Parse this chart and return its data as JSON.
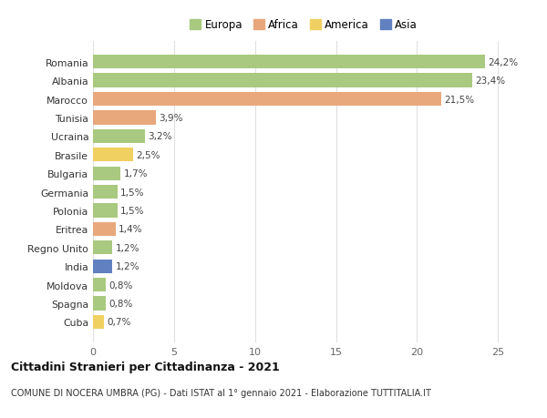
{
  "countries": [
    "Romania",
    "Albania",
    "Marocco",
    "Tunisia",
    "Ucraina",
    "Brasile",
    "Bulgaria",
    "Germania",
    "Polonia",
    "Eritrea",
    "Regno Unito",
    "India",
    "Moldova",
    "Spagna",
    "Cuba"
  ],
  "values": [
    24.2,
    23.4,
    21.5,
    3.9,
    3.2,
    2.5,
    1.7,
    1.5,
    1.5,
    1.4,
    1.2,
    1.2,
    0.8,
    0.8,
    0.7
  ],
  "labels": [
    "24,2%",
    "23,4%",
    "21,5%",
    "3,9%",
    "3,2%",
    "2,5%",
    "1,7%",
    "1,5%",
    "1,5%",
    "1,4%",
    "1,2%",
    "1,2%",
    "0,8%",
    "0,8%",
    "0,7%"
  ],
  "continents": [
    "Europa",
    "Europa",
    "Africa",
    "Africa",
    "Europa",
    "America",
    "Europa",
    "Europa",
    "Europa",
    "Africa",
    "Europa",
    "Asia",
    "Europa",
    "Europa",
    "America"
  ],
  "colors": {
    "Europa": "#a8c97f",
    "Africa": "#e8a87c",
    "America": "#f0d060",
    "Asia": "#6080c0"
  },
  "xlim": [
    0,
    26
  ],
  "xticks": [
    0,
    5,
    10,
    15,
    20,
    25
  ],
  "title": "Cittadini Stranieri per Cittadinanza - 2021",
  "subtitle": "COMUNE DI NOCERA UMBRA (PG) - Dati ISTAT al 1° gennaio 2021 - Elaborazione TUTTITALIA.IT",
  "bg_color": "#ffffff",
  "grid_color": "#e0e0e0",
  "bar_height": 0.75,
  "legend_order": [
    "Europa",
    "Africa",
    "America",
    "Asia"
  ]
}
